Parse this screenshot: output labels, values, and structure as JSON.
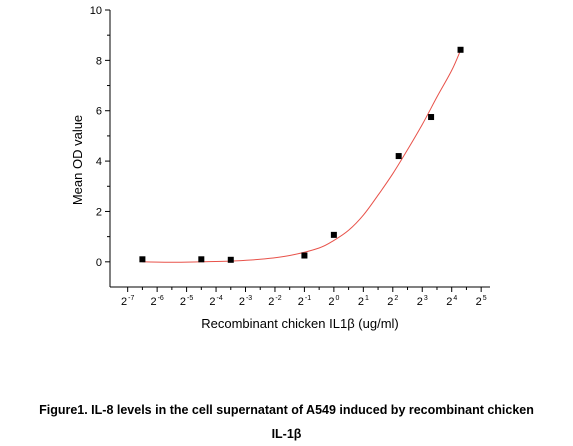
{
  "chart_data": {
    "type": "scatter",
    "xlabel": "Recombinant chicken IL1β (ug/ml)",
    "ylabel": "Mean OD value",
    "x_scale": "log2",
    "x_tick_base": "2",
    "x_tick_exponents": [
      "-7",
      "-6",
      "-5",
      "-4",
      "-3",
      "-2",
      "-1",
      "0",
      "1",
      "2",
      "3",
      "4",
      "5"
    ],
    "xlim_log2": [
      -7.6,
      5.3
    ],
    "y_ticks": [
      "0",
      "2",
      "4",
      "6",
      "8",
      "10"
    ],
    "ylim": [
      -1.0,
      10.0
    ],
    "grid": false,
    "legend": "none",
    "points": [
      {
        "x_log2": -6.5,
        "y": 0.1
      },
      {
        "x_log2": -4.5,
        "y": 0.1
      },
      {
        "x_log2": -3.5,
        "y": 0.08
      },
      {
        "x_log2": -1.0,
        "y": 0.25
      },
      {
        "x_log2": 0.0,
        "y": 1.07
      },
      {
        "x_log2": 2.2,
        "y": 4.2
      },
      {
        "x_log2": 3.3,
        "y": 5.75
      },
      {
        "x_log2": 4.3,
        "y": 8.42
      }
    ],
    "fit_curve": [
      {
        "x_log2": -6.5,
        "y": 0.0
      },
      {
        "x_log2": -5.5,
        "y": -0.02
      },
      {
        "x_log2": -4.5,
        "y": 0.0
      },
      {
        "x_log2": -3.5,
        "y": 0.03
      },
      {
        "x_log2": -2.5,
        "y": 0.1
      },
      {
        "x_log2": -1.5,
        "y": 0.25
      },
      {
        "x_log2": -0.5,
        "y": 0.55
      },
      {
        "x_log2": 0.0,
        "y": 0.85
      },
      {
        "x_log2": 0.5,
        "y": 1.25
      },
      {
        "x_log2": 1.0,
        "y": 1.85
      },
      {
        "x_log2": 1.5,
        "y": 2.65
      },
      {
        "x_log2": 2.0,
        "y": 3.5
      },
      {
        "x_log2": 2.5,
        "y": 4.45
      },
      {
        "x_log2": 3.0,
        "y": 5.45
      },
      {
        "x_log2": 3.5,
        "y": 6.55
      },
      {
        "x_log2": 4.0,
        "y": 7.6
      },
      {
        "x_log2": 4.3,
        "y": 8.4
      }
    ],
    "colors": {
      "points": "#000000",
      "fit_curve": "#e8524a",
      "axes": "#000000"
    }
  },
  "caption": {
    "line1": "Figure1. IL-8 levels in the cell supernatant of A549 induced by recombinant chicken",
    "line2": "IL-1β"
  }
}
